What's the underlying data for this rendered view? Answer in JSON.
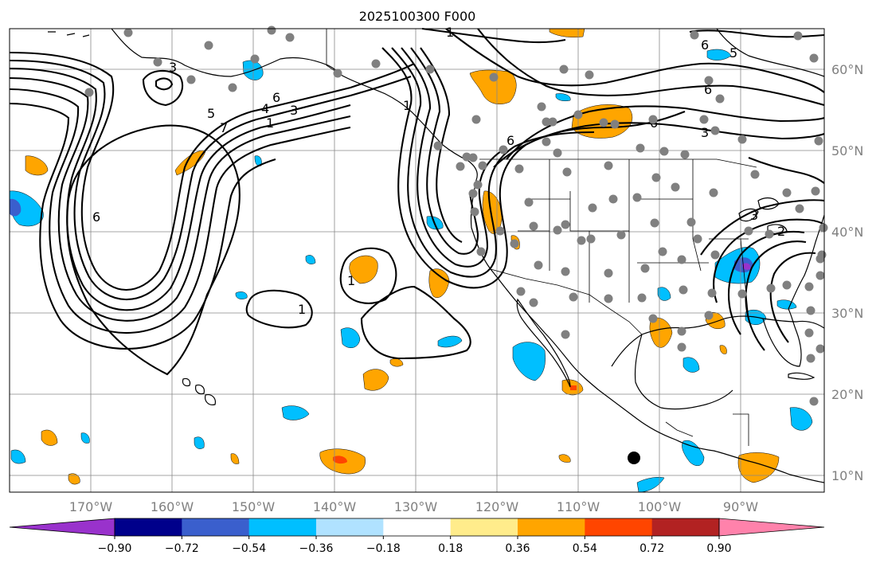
{
  "title": "2025100300 F000",
  "longitude_labels": [
    "170°W",
    "160°W",
    "150°W",
    "140°W",
    "130°W",
    "120°W",
    "110°W",
    "100°W",
    "90°W"
  ],
  "latitude_labels": [
    "60°N",
    "50°N",
    "40°N",
    "30°N",
    "20°N",
    "10°N"
  ],
  "colorbar": {
    "tick_labels": [
      "−0.90",
      "−0.72",
      "−0.54",
      "−0.36",
      "−0.18",
      "0.18",
      "0.36",
      "0.54",
      "0.72",
      "0.90"
    ],
    "colors": [
      "#9932cc",
      "#00008b",
      "#3a5fcd",
      "#00bfff",
      "#b0e2ff",
      "#ffffff",
      "#ffec8b",
      "#ffa500",
      "#ff4500",
      "#b22222",
      "#ff82ab"
    ]
  },
  "contour_labels": [
    {
      "id": "a",
      "text": "3"
    },
    {
      "id": "b",
      "text": "5"
    },
    {
      "id": "c",
      "text": "4"
    },
    {
      "id": "d",
      "text": "6"
    },
    {
      "id": "e",
      "text": "3"
    },
    {
      "id": "f",
      "text": "1"
    },
    {
      "id": "g",
      "text": "7"
    },
    {
      "id": "h",
      "text": "6"
    },
    {
      "id": "i",
      "text": "1"
    },
    {
      "id": "j",
      "text": "1"
    },
    {
      "id": "k",
      "text": "1"
    },
    {
      "id": "l",
      "text": "6"
    },
    {
      "id": "m",
      "text": "6"
    },
    {
      "id": "n",
      "text": "6"
    },
    {
      "id": "o",
      "text": "5"
    },
    {
      "id": "p",
      "text": "3"
    },
    {
      "id": "q",
      "text": "3"
    },
    {
      "id": "r",
      "text": "2"
    },
    {
      "id": "s",
      "text": "1"
    },
    {
      "id": "t",
      "text": "6"
    }
  ],
  "colors": {
    "contour": "#000000",
    "station_dot": "#808080",
    "marker_dot": "#000000",
    "grid": "#888888",
    "axis_label": "#808080"
  }
}
